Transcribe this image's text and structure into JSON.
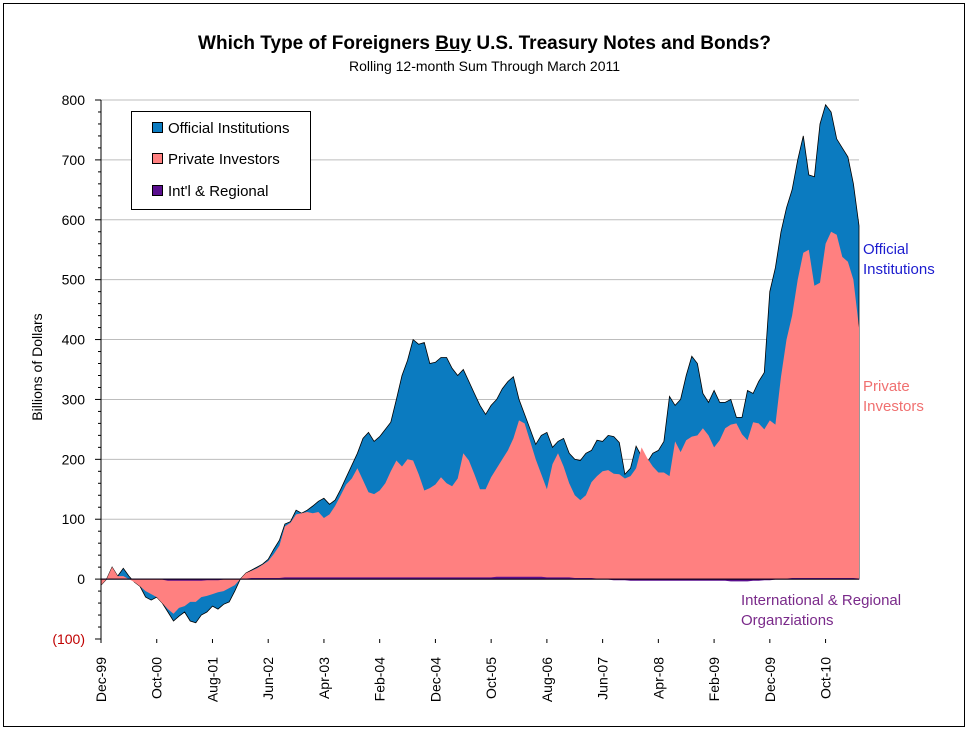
{
  "chart_data": {
    "type": "area",
    "title_pre": "Which Type of Foreigners ",
    "title_emph": "Buy",
    "title_post": " U.S. Treasury Notes and Bonds?",
    "subtitle": "Rolling 12-month Sum Through March 2011",
    "ylabel": "Billions of Dollars",
    "ylim": [
      -100,
      800
    ],
    "yticks": [
      {
        "value": 800,
        "label": "800"
      },
      {
        "value": 700,
        "label": "700"
      },
      {
        "value": 600,
        "label": "600"
      },
      {
        "value": 500,
        "label": "500"
      },
      {
        "value": 400,
        "label": "400"
      },
      {
        "value": 300,
        "label": "300"
      },
      {
        "value": 200,
        "label": "200"
      },
      {
        "value": 100,
        "label": "100"
      },
      {
        "value": 0,
        "label": "0"
      },
      {
        "value": -100,
        "label": "(100)"
      }
    ],
    "x_tick_labels": [
      "Dec-99",
      "Oct-00",
      "Aug-01",
      "Jun-02",
      "Apr-03",
      "Feb-04",
      "Dec-04",
      "Oct-05",
      "Aug-06",
      "Jun-07",
      "Apr-08",
      "Feb-09",
      "Dec-09",
      "Oct-10"
    ],
    "x_start": "Dec-99",
    "x_end": "Mar-11",
    "grid": true,
    "legend_position": "top-left",
    "series": [
      {
        "name": "Official Institutions",
        "color": "#0b7bc0",
        "stacked_on": "Private Investors",
        "values": [
          -10,
          0,
          20,
          5,
          18,
          5,
          -5,
          -12,
          -30,
          -35,
          -30,
          -40,
          -55,
          -70,
          -62,
          -55,
          -70,
          -73,
          -60,
          -55,
          -45,
          -50,
          -42,
          -38,
          -20,
          0,
          10,
          15,
          20,
          25,
          33,
          50,
          65,
          92,
          96,
          115,
          110,
          115,
          122,
          130,
          135,
          125,
          132,
          150,
          170,
          190,
          210,
          235,
          245,
          230,
          238,
          250,
          262,
          300,
          340,
          365,
          400,
          392,
          395,
          360,
          362,
          370,
          370,
          352,
          340,
          350,
          330,
          310,
          290,
          275,
          290,
          300,
          318,
          330,
          338,
          300,
          275,
          250,
          225,
          240,
          245,
          220,
          230,
          235,
          210,
          200,
          198,
          210,
          215,
          232,
          230,
          240,
          238,
          228,
          175,
          185,
          222,
          205,
          195,
          210,
          215,
          230,
          305,
          290,
          300,
          340,
          372,
          360,
          310,
          295,
          315,
          295,
          295,
          300,
          270,
          270,
          315,
          310,
          330,
          345,
          480,
          520,
          580,
          620,
          650,
          700,
          740,
          675,
          672,
          760,
          792,
          780,
          735,
          720,
          705,
          660,
          590
        ]
      },
      {
        "name": "Private Investors",
        "color": "#ff8080",
        "values": [
          -10,
          0,
          20,
          5,
          5,
          0,
          -5,
          -12,
          -20,
          -25,
          -30,
          -40,
          -50,
          -58,
          -48,
          -45,
          -38,
          -38,
          -30,
          -28,
          -25,
          -22,
          -20,
          -15,
          -10,
          0,
          10,
          14,
          18,
          24,
          30,
          42,
          56,
          88,
          94,
          108,
          110,
          112,
          110,
          112,
          102,
          108,
          122,
          140,
          158,
          168,
          185,
          165,
          145,
          142,
          148,
          160,
          180,
          198,
          188,
          200,
          198,
          175,
          148,
          152,
          158,
          170,
          160,
          155,
          168,
          210,
          198,
          175,
          150,
          150,
          170,
          185,
          200,
          215,
          235,
          265,
          260,
          230,
          200,
          175,
          150,
          192,
          210,
          188,
          160,
          140,
          132,
          140,
          162,
          172,
          180,
          182,
          176,
          175,
          168,
          172,
          185,
          220,
          202,
          188,
          178,
          178,
          172,
          230,
          212,
          232,
          238,
          240,
          252,
          240,
          220,
          232,
          252,
          258,
          260,
          242,
          232,
          262,
          260,
          250,
          265,
          258,
          338,
          400,
          440,
          500,
          545,
          550,
          490,
          495,
          560,
          580,
          575,
          538,
          530,
          500,
          420
        ]
      },
      {
        "name": "Int'l & Regional",
        "color": "#5a0f8e",
        "values": [
          0,
          0,
          0,
          0,
          0,
          0,
          0,
          0,
          0,
          0,
          0,
          0,
          -2,
          -2,
          -2,
          -2,
          -2,
          -2,
          -2,
          -1,
          -1,
          -1,
          0,
          0,
          0,
          0,
          0,
          1,
          1,
          1,
          1,
          1,
          1,
          2,
          2,
          2,
          2,
          2,
          2,
          2,
          2,
          2,
          2,
          2,
          2,
          2,
          2,
          2,
          2,
          2,
          2,
          2,
          2,
          2,
          2,
          2,
          2,
          2,
          2,
          2,
          2,
          2,
          2,
          2,
          2,
          2,
          2,
          2,
          2,
          2,
          2,
          3,
          3,
          3,
          3,
          3,
          3,
          3,
          3,
          3,
          2,
          2,
          2,
          2,
          2,
          1,
          1,
          1,
          1,
          0,
          0,
          0,
          -1,
          -1,
          -1,
          -2,
          -2,
          -2,
          -2,
          -2,
          -2,
          -2,
          -2,
          -2,
          -2,
          -2,
          -2,
          -2,
          -2,
          -2,
          -2,
          -2,
          -2,
          -3,
          -3,
          -3,
          -3,
          -2,
          -2,
          -1,
          -1,
          0,
          0,
          0,
          1,
          1,
          1,
          1,
          1,
          1,
          1,
          1,
          1,
          1,
          1,
          1,
          0
        ]
      }
    ],
    "legend": [
      "Official Institutions",
      "Private Investors",
      "Int'l & Regional"
    ],
    "annotations": {
      "official_line1": "Official",
      "official_line2": "Institutions",
      "private_line1": "Private",
      "private_line2": "Investors",
      "intl_line1": "International & Regional",
      "intl_line2": "Organziations"
    },
    "colors": {
      "official_text": "#1c1ccf",
      "private_text": "#f07070",
      "intl_text": "#7a2a8a",
      "negative_tick": "#c00000",
      "grid": "#bdbdbd"
    }
  }
}
